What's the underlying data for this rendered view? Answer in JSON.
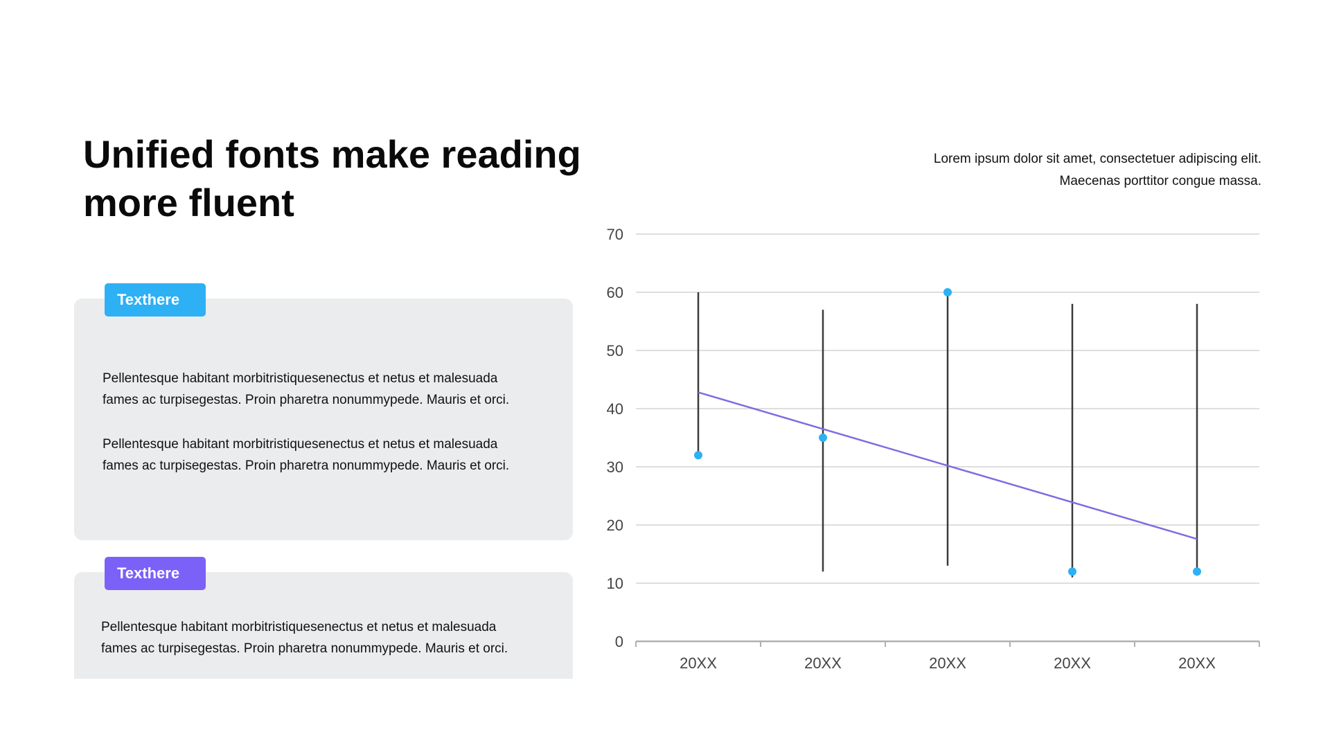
{
  "title_line1": "Unified fonts make reading",
  "title_line2": "more fluent",
  "subtitle": {
    "line1": "Lorem ipsum dolor sit amet, consectetuer adipiscing elit.",
    "line2": "Maecenas porttitor congue massa."
  },
  "cards": [
    {
      "tag": "Texthere",
      "tag_color": "#2eb0f5",
      "paragraphs": [
        {
          "line1": "Pellentesque habitant morbitristiquesenectus et netus et malesuada",
          "line2": "fames ac turpisegestas. Proin pharetra nonummypede. Mauris et orci."
        },
        {
          "line1": "Pellentesque habitant morbitristiquesenectus et netus et malesuada",
          "line2": "fames ac turpisegestas. Proin pharetra nonummypede. Mauris et orci."
        }
      ]
    },
    {
      "tag": "Texthere",
      "tag_color": "#7b61f8",
      "paragraphs": [
        {
          "line1": "Pellentesque habitant morbitristiquesenectus et netus et malesuada",
          "line2": "fames ac turpisegestas. Proin pharetra nonummypede. Mauris et orci."
        }
      ]
    }
  ],
  "chart_data": {
    "type": "scatter",
    "categories": [
      "20XX",
      "20XX",
      "20XX",
      "20XX",
      "20XX"
    ],
    "series": [
      {
        "values": [
          32,
          35,
          60,
          12,
          12
        ],
        "color": "#2eb0f5"
      }
    ],
    "error_bars": {
      "high": [
        60,
        57,
        60,
        58,
        58
      ],
      "low": [
        32,
        12,
        13,
        11,
        12
      ],
      "color": "#3a3a3a"
    },
    "trendline": {
      "type": "linear",
      "color": "#7b6ee0"
    },
    "ylim": [
      0,
      70
    ],
    "yticks": [
      0,
      10,
      20,
      30,
      40,
      50,
      60,
      70
    ],
    "grid": true,
    "gridline_color": "#d4d4d4",
    "axis_color": "#b0b0b0",
    "tick_label_color": "#444444",
    "legend": "none"
  }
}
